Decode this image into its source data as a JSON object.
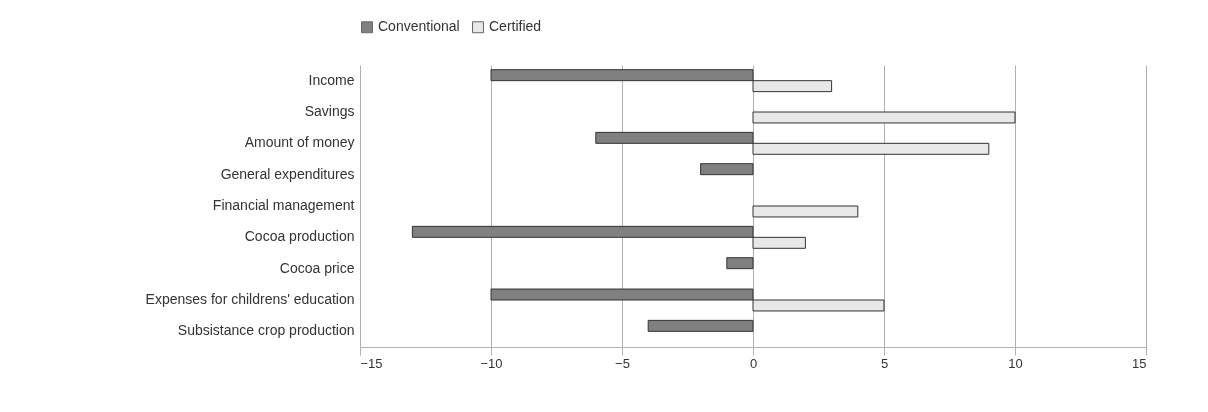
{
  "chart_data": {
    "type": "bar",
    "orientation": "horizontal",
    "categories": [
      "Income",
      "Savings",
      "Amount of money",
      "General expenditures",
      "Financial management",
      "Cocoa production",
      "Cocoa price",
      "Expenses for childrens' education",
      "Subsistance crop production"
    ],
    "series": [
      {
        "name": "Conventional",
        "color": "#808080",
        "values": [
          -10,
          null,
          -6,
          -2,
          null,
          -13,
          -1,
          -10,
          -4
        ]
      },
      {
        "name": "Certified",
        "color": "#e8e8e8",
        "values": [
          3,
          10,
          9,
          null,
          4,
          2,
          null,
          5,
          null
        ]
      }
    ],
    "xlim": [
      -15,
      15
    ],
    "xticks": [
      -15,
      -10,
      -5,
      0,
      5,
      10,
      15
    ],
    "grid": "x",
    "legend": "top"
  }
}
